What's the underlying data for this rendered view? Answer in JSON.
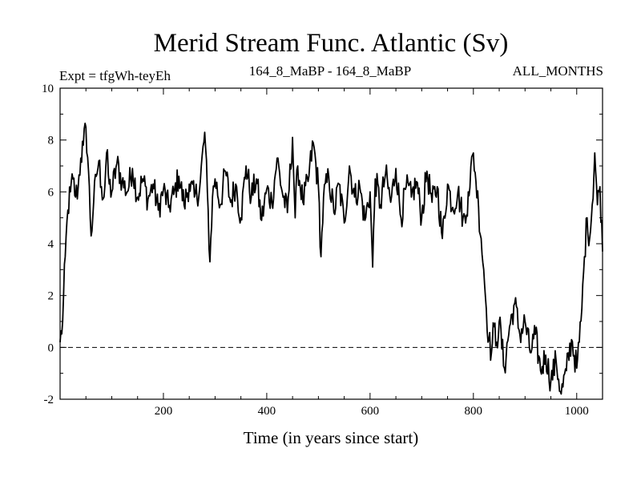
{
  "chart_data": {
    "type": "line",
    "title": "Merid Stream Func. Atlantic (Sv)",
    "subtitle_left": "Expt = tfgWh-teyEh",
    "subtitle_center": "164_8_MaBP - 164_8_MaBP",
    "subtitle_right": "ALL_MONTHS",
    "xlabel": "Time (in years since start)",
    "ylabel": "",
    "xlim": [
      0,
      1050
    ],
    "ylim": [
      -2,
      10
    ],
    "x_ticks": [
      200,
      400,
      600,
      800,
      1000
    ],
    "y_ticks": [
      -2,
      0,
      2,
      4,
      6,
      8,
      10
    ],
    "reference_line": {
      "y": 0,
      "style": "dashed"
    },
    "series": [
      {
        "name": "Merid Stream Func. Atlantic",
        "x": [
          0,
          5,
          10,
          15,
          20,
          25,
          30,
          35,
          40,
          45,
          50,
          55,
          60,
          65,
          70,
          75,
          80,
          85,
          90,
          95,
          100,
          110,
          120,
          130,
          140,
          150,
          160,
          170,
          180,
          190,
          200,
          210,
          220,
          230,
          240,
          250,
          260,
          270,
          280,
          285,
          290,
          295,
          300,
          310,
          320,
          330,
          340,
          350,
          360,
          370,
          380,
          390,
          400,
          410,
          420,
          430,
          440,
          450,
          455,
          460,
          470,
          480,
          490,
          500,
          505,
          510,
          520,
          530,
          540,
          550,
          560,
          570,
          580,
          590,
          600,
          605,
          610,
          620,
          630,
          640,
          650,
          660,
          670,
          680,
          690,
          700,
          710,
          720,
          730,
          740,
          750,
          760,
          770,
          780,
          785,
          790,
          800,
          805,
          810,
          815,
          820,
          825,
          830,
          835,
          840,
          845,
          850,
          860,
          870,
          880,
          890,
          900,
          910,
          920,
          930,
          940,
          950,
          960,
          970,
          980,
          990,
          1000,
          1005,
          1010,
          1015,
          1020,
          1025,
          1030,
          1035,
          1040,
          1045,
          1050
        ],
        "values": [
          0.2,
          1.0,
          3.5,
          5.3,
          6.0,
          6.5,
          5.8,
          6.2,
          7.3,
          7.8,
          8.5,
          6.8,
          4.3,
          5.6,
          6.6,
          7.2,
          6.2,
          5.8,
          7.5,
          6.3,
          6.0,
          7.1,
          6.4,
          6.0,
          6.9,
          5.8,
          6.5,
          5.7,
          6.3,
          5.3,
          6.1,
          5.4,
          5.9,
          6.6,
          5.5,
          6.3,
          5.8,
          6.1,
          8.3,
          6.0,
          3.3,
          5.8,
          6.5,
          5.5,
          6.8,
          5.6,
          6.3,
          5.0,
          7.0,
          5.8,
          6.5,
          4.9,
          6.1,
          5.6,
          7.3,
          6.0,
          5.2,
          8.1,
          5.0,
          7.0,
          5.6,
          6.4,
          7.9,
          6.2,
          3.5,
          5.8,
          6.6,
          5.2,
          6.3,
          4.8,
          7.0,
          5.8,
          6.2,
          4.9,
          6.0,
          3.1,
          6.5,
          5.5,
          6.7,
          5.6,
          6.9,
          5.0,
          6.2,
          5.8,
          6.4,
          5.0,
          6.8,
          5.6,
          6.2,
          4.2,
          6.3,
          5.4,
          6.0,
          5.0,
          4.8,
          6.0,
          7.5,
          6.4,
          5.4,
          4.2,
          3.0,
          1.5,
          0.3,
          -0.2,
          0.8,
          0.2,
          1.0,
          -0.8,
          0.8,
          1.7,
          0.5,
          1.0,
          -0.2,
          0.5,
          -0.9,
          -0.3,
          -1.3,
          -0.5,
          -1.8,
          -0.9,
          0.3,
          -0.8,
          0.2,
          1.5,
          3.5,
          5.0,
          4.2,
          5.5,
          7.5,
          5.5,
          6.2,
          3.7
        ]
      }
    ]
  }
}
